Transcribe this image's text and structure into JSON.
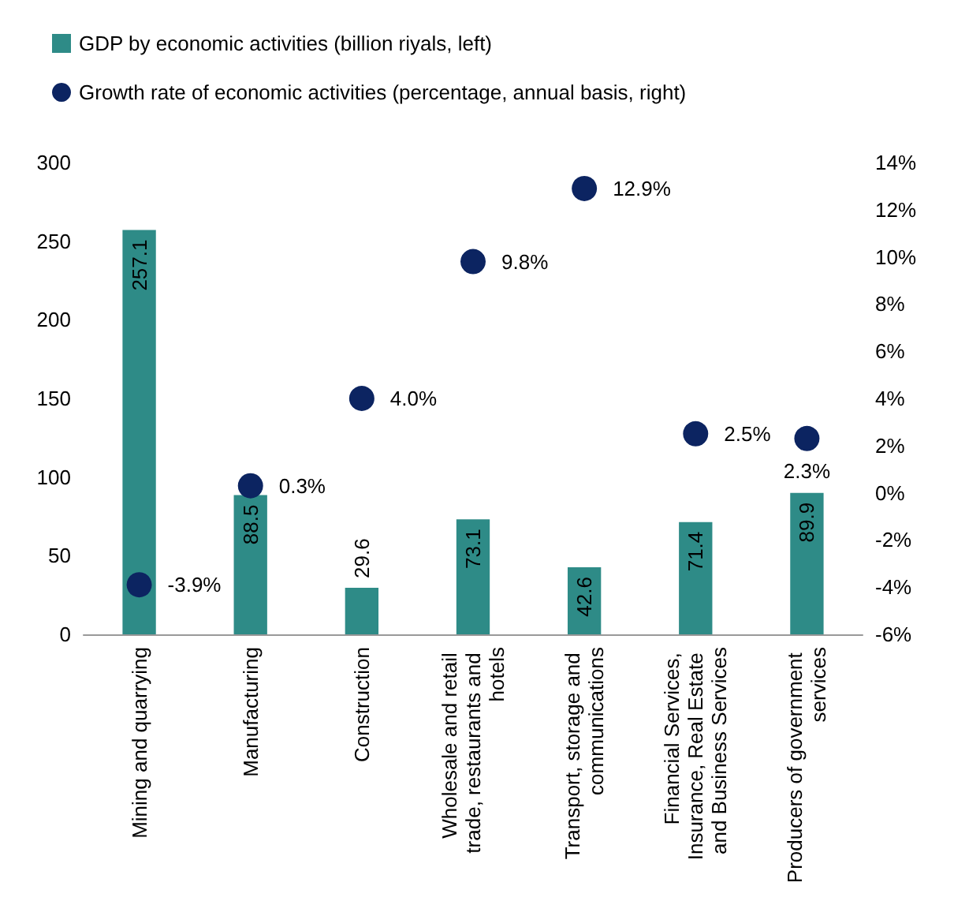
{
  "chart_data": {
    "type": "bar",
    "categories": [
      "Mining and quarrying",
      "Manufacturing",
      "Construction",
      "Wholesale and retail trade, restaurants and hotels",
      "Transport, storage and communications",
      "Financial Services, Insurance, Real Estate and Business Services",
      "Producers of government services"
    ],
    "series": [
      {
        "name": "GDP by economic activities (billion riyals, left)",
        "color": "#2e8b87",
        "values": [
          257.1,
          88.5,
          29.6,
          73.1,
          42.6,
          71.4,
          89.9
        ]
      },
      {
        "name": "Growth rate of economic activities (percentage, annual basis, right)",
        "type": "scatter",
        "axis": "y2",
        "color": "#0c2461",
        "marker": "circle",
        "values": [
          -3.9,
          0.3,
          4.0,
          9.8,
          12.9,
          2.5,
          2.3
        ],
        "value_labels": [
          "-3.9%",
          "0.3%",
          "4.0%",
          "9.8%",
          "12.9%",
          "2.5%",
          "2.3%"
        ]
      }
    ],
    "data_labels": true,
    "ylim": [
      0,
      300
    ],
    "yticks": [
      0,
      50,
      100,
      150,
      200,
      250,
      300
    ],
    "y2lim": [
      -6,
      14
    ],
    "y2ticks": [
      {
        "value": -6,
        "label": "-6%"
      },
      {
        "value": -4,
        "label": "-4%"
      },
      {
        "value": -2,
        "label": "-2%"
      },
      {
        "value": 0,
        "label": "0%"
      },
      {
        "value": 2,
        "label": "2%"
      },
      {
        "value": 4,
        "label": "4%"
      },
      {
        "value": 6,
        "label": "6%"
      },
      {
        "value": 8,
        "label": "8%"
      },
      {
        "value": 10,
        "label": "10%"
      },
      {
        "value": 12,
        "label": "12%"
      },
      {
        "value": 14,
        "label": "14%"
      }
    ],
    "grid": false,
    "legend": "top"
  }
}
